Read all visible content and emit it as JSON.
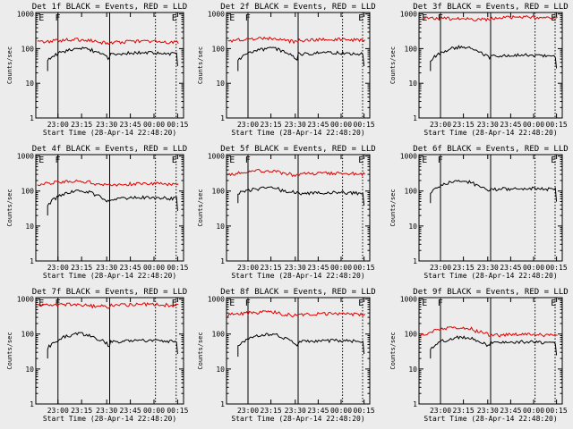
{
  "chart_data": [
    {
      "type": "line",
      "title": "Det 1f BLACK = Events, RED = LLD",
      "xlabel": "Start Time (28-Apr-14 22:48:20)",
      "ylabel": "Counts/sec",
      "x_ticks": [
        "23:00",
        "23:15",
        "23:30",
        "23:45",
        "00:00",
        "00:15"
      ],
      "y_ticks": [
        "1",
        "10",
        "100",
        "1000"
      ],
      "ylim": [
        1,
        1100
      ],
      "markers": [
        "E",
        "F",
        "E"
      ],
      "black_level": [
        45,
        100,
        70
      ],
      "red_level": [
        150,
        180,
        150
      ]
    },
    {
      "type": "line",
      "title": "Det 2f BLACK = Events, RED = LLD",
      "xlabel": "Start Time (28-Apr-14 22:48:20)",
      "ylabel": "Counts/sec",
      "x_ticks": [
        "23:00",
        "23:15",
        "23:30",
        "23:45",
        "00:00",
        "00:15"
      ],
      "y_ticks": [
        "1",
        "10",
        "100",
        "1000"
      ],
      "ylim": [
        1,
        1100
      ],
      "markers": [
        "E",
        "F",
        "E"
      ],
      "black_level": [
        45,
        100,
        70
      ],
      "red_level": [
        160,
        200,
        170
      ]
    },
    {
      "type": "line",
      "title": "Det 3f BLACK = Events, RED = LLD",
      "xlabel": "Start Time (28-Apr-14 22:48:20)",
      "ylabel": "Counts/sec",
      "x_ticks": [
        "23:00",
        "23:15",
        "23:30",
        "23:45",
        "00:00",
        "00:15"
      ],
      "y_ticks": [
        "1",
        "10",
        "100",
        "1000"
      ],
      "ylim": [
        1,
        1100
      ],
      "markers": [
        "E",
        "F",
        "E"
      ],
      "black_level": [
        45,
        110,
        60
      ],
      "red_level": [
        750,
        750,
        750
      ]
    },
    {
      "type": "line",
      "title": "Det 4f BLACK = Events, RED = LLD",
      "xlabel": "Start Time (28-Apr-14 22:48:20)",
      "ylabel": "Counts/sec",
      "x_ticks": [
        "23:00",
        "23:15",
        "23:30",
        "23:45",
        "00:00",
        "00:15"
      ],
      "y_ticks": [
        "1",
        "10",
        "100",
        "1000"
      ],
      "ylim": [
        1,
        1100
      ],
      "markers": [
        "E",
        "F",
        "E"
      ],
      "black_level": [
        40,
        100,
        60
      ],
      "red_level": [
        150,
        190,
        150
      ]
    },
    {
      "type": "line",
      "title": "Det 5f BLACK = Events, RED = LLD",
      "xlabel": "Start Time (28-Apr-14 22:48:20)",
      "ylabel": "Counts/sec",
      "x_ticks": [
        "23:00",
        "23:15",
        "23:30",
        "23:45",
        "00:00",
        "00:15"
      ],
      "y_ticks": [
        "1",
        "10",
        "100",
        "1000"
      ],
      "ylim": [
        1,
        1100
      ],
      "markers": [
        "E",
        "F",
        "E"
      ],
      "black_level": [
        90,
        120,
        85
      ],
      "red_level": [
        280,
        380,
        300
      ]
    },
    {
      "type": "line",
      "title": "Det 6f BLACK = Events, RED = LLD",
      "xlabel": "Start Time (28-Apr-14 22:48:20)",
      "ylabel": "Counts/sec",
      "x_ticks": [
        "23:00",
        "23:15",
        "23:30",
        "23:45",
        "00:00",
        "00:15"
      ],
      "y_ticks": [
        "1",
        "10",
        "100",
        "1000"
      ],
      "ylim": [
        1,
        1100
      ],
      "markers": [
        "E",
        "F",
        "E"
      ],
      "black_level": [
        90,
        190,
        110
      ],
      "red_level": null
    },
    {
      "type": "line",
      "title": "Det 7f BLACK = Events, RED = LLD",
      "xlabel": "Start Time (28-Apr-14 22:48:20)",
      "ylabel": "Counts/sec",
      "x_ticks": [
        "23:00",
        "23:15",
        "23:30",
        "23:45",
        "00:00",
        "00:15"
      ],
      "y_ticks": [
        "1",
        "10",
        "100",
        "1000"
      ],
      "ylim": [
        1,
        1100
      ],
      "markers": [
        "E",
        "F",
        "E"
      ],
      "black_level": [
        40,
        100,
        60
      ],
      "red_level": [
        650,
        700,
        650
      ]
    },
    {
      "type": "line",
      "title": "Det 8f BLACK = Events, RED = LLD",
      "xlabel": "Start Time (28-Apr-14 22:48:20)",
      "ylabel": "Counts/sec",
      "x_ticks": [
        "23:00",
        "23:15",
        "23:30",
        "23:45",
        "00:00",
        "00:15"
      ],
      "y_ticks": [
        "1",
        "10",
        "100",
        "1000"
      ],
      "ylim": [
        1,
        1100
      ],
      "markers": [
        "E",
        "F",
        "E"
      ],
      "black_level": [
        45,
        95,
        60
      ],
      "red_level": [
        350,
        420,
        350
      ]
    },
    {
      "type": "line",
      "title": "Det 9f BLACK = Events, RED = LLD",
      "xlabel": "Start Time (28-Apr-14 22:48:20)",
      "ylabel": "Counts/sec",
      "x_ticks": [
        "23:00",
        "23:15",
        "23:30",
        "23:45",
        "00:00",
        "00:15"
      ],
      "y_ticks": [
        "1",
        "10",
        "100",
        "1000"
      ],
      "ylim": [
        1,
        1100
      ],
      "markers": [
        "E",
        "F",
        "E"
      ],
      "black_level": [
        40,
        80,
        55
      ],
      "red_level": [
        90,
        150,
        90
      ]
    }
  ],
  "colors": {
    "background": "#ececec",
    "events": "#000000",
    "lld": "#e00000",
    "axis": "#000000"
  }
}
